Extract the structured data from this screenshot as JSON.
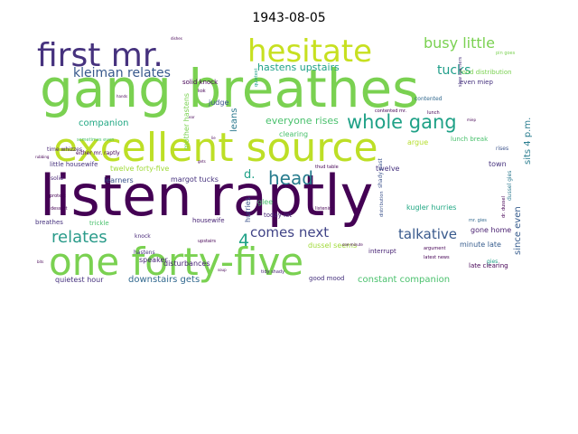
{
  "title": "1943-08-05",
  "palette": [
    "#440154",
    "#46327e",
    "#365c8d",
    "#277f8e",
    "#1fa187",
    "#4ac16d",
    "#a0da39",
    "#c7e020"
  ],
  "words": [
    {
      "text": "listen raptly",
      "weight": 1.0,
      "color": "#440154"
    },
    {
      "text": "gang breathes",
      "weight": 0.98,
      "color": "#7ad151"
    },
    {
      "text": "excellent source",
      "weight": 0.78,
      "color": "#bddf26"
    },
    {
      "text": "one forty-five",
      "weight": 0.76,
      "color": "#7ad151"
    },
    {
      "text": "hesitate",
      "weight": 0.6,
      "color": "#c7e020"
    },
    {
      "text": "first mr.",
      "weight": 0.62,
      "color": "#46327e"
    },
    {
      "text": "whole gang",
      "weight": 0.35,
      "color": "#1fa187"
    },
    {
      "text": "head",
      "weight": 0.34,
      "color": "#287c8e"
    },
    {
      "text": "relates",
      "weight": 0.3,
      "color": "#2a9b8a"
    },
    {
      "text": "busy little",
      "weight": 0.27,
      "color": "#7ad151"
    },
    {
      "text": "kleiman relates",
      "weight": 0.24,
      "color": "#38598c"
    },
    {
      "text": "comes next",
      "weight": 0.26,
      "color": "#414487"
    },
    {
      "text": "talkative",
      "weight": 0.24,
      "color": "#38598c"
    },
    {
      "text": "tucks",
      "weight": 0.22,
      "color": "#1f9e89"
    },
    {
      "text": "d.",
      "weight": 0.22,
      "color": "#1fa187"
    },
    {
      "text": "4",
      "weight": 0.25,
      "color": "#1fa187"
    },
    {
      "text": "hastens upstairs",
      "weight": 0.16,
      "color": "#1fa187"
    },
    {
      "text": "everyone rises",
      "weight": 0.16,
      "color": "#4ac16d"
    },
    {
      "text": "constant companion",
      "weight": 0.14,
      "color": "#4ac16d"
    },
    {
      "text": "downstairs gets",
      "weight": 0.14,
      "color": "#31688e"
    },
    {
      "text": "since even",
      "weight": 0.16,
      "color": "#365c8d"
    },
    {
      "text": "sits 4 p.m.",
      "weight": 0.16,
      "color": "#287c8e"
    },
    {
      "text": "companion",
      "weight": 0.13,
      "color": "#22a884"
    },
    {
      "text": "leans",
      "weight": 0.14,
      "color": "#2a788e"
    },
    {
      "text": "quietest hour",
      "weight": 0.11,
      "color": "#46327e"
    },
    {
      "text": "dussel seems",
      "weight": 0.11,
      "color": "#a0da39"
    },
    {
      "text": "disturbances",
      "weight": 0.1,
      "color": "#482475"
    },
    {
      "text": "twelve forty-five",
      "weight": 0.1,
      "color": "#a0da39"
    },
    {
      "text": "minute late",
      "weight": 0.1,
      "color": "#365c8d"
    },
    {
      "text": "kugler hurries",
      "weight": 0.1,
      "color": "#22a884"
    },
    {
      "text": "gone home",
      "weight": 0.1,
      "color": "#481f70"
    },
    {
      "text": "margot tucks",
      "weight": 0.1,
      "color": "#46327e"
    },
    {
      "text": "learners",
      "weight": 0.1,
      "color": "#3b528b"
    },
    {
      "text": "speaker",
      "weight": 0.1,
      "color": "#482878"
    },
    {
      "text": "glee",
      "weight": 0.1,
      "color": "#4ac16d"
    },
    {
      "text": "judge",
      "weight": 0.1,
      "color": "#3b528b"
    },
    {
      "text": "clearing",
      "weight": 0.1,
      "color": "#4ac16d"
    },
    {
      "text": "argue",
      "weight": 0.1,
      "color": "#b5de2b"
    },
    {
      "text": "twelve",
      "weight": 0.09,
      "color": "#46327e"
    },
    {
      "text": "town",
      "weight": 0.09,
      "color": "#46327e"
    },
    {
      "text": "mother hastens",
      "weight": 0.09,
      "color": "#7ad151"
    },
    {
      "text": "hurries",
      "weight": 0.09,
      "color": "#3b528b"
    },
    {
      "text": "interrupt",
      "weight": 0.08,
      "color": "#482475"
    },
    {
      "text": "good mood",
      "weight": 0.07,
      "color": "#46327e"
    },
    {
      "text": "today let",
      "weight": 0.07,
      "color": "#482878"
    },
    {
      "text": "even miep",
      "weight": 0.08,
      "color": "#46327e"
    },
    {
      "text": "food distribution",
      "weight": 0.07,
      "color": "#7ad151"
    },
    {
      "text": "late clearing",
      "weight": 0.07,
      "color": "#440154"
    },
    {
      "text": "trickle",
      "weight": 0.08,
      "color": "#4ac16d"
    },
    {
      "text": "breathes",
      "weight": 0.07,
      "color": "#46327e"
    },
    {
      "text": "solid knock",
      "weight": 0.07,
      "color": "#440154"
    },
    {
      "text": "housewife",
      "weight": 0.07,
      "color": "#482475"
    },
    {
      "text": "little housewife",
      "weight": 0.07,
      "color": "#46327e"
    },
    {
      "text": "lunch break",
      "weight": 0.07,
      "color": "#4ac16d"
    },
    {
      "text": "shady past",
      "weight": 0.07,
      "color": "#3b528b"
    },
    {
      "text": "contented",
      "weight": 0.06,
      "color": "#31688e"
    },
    {
      "text": "either mr. raptly",
      "weight": 0.06,
      "color": "#440154"
    },
    {
      "text": "knock",
      "weight": 0.06,
      "color": "#482878"
    },
    {
      "text": "gies",
      "weight": 0.06,
      "color": "#1fa187"
    },
    {
      "text": "tidy shady",
      "weight": 0.05,
      "color": "#482475"
    },
    {
      "text": "upstairs",
      "weight": 0.05,
      "color": "#440154"
    },
    {
      "text": "solid",
      "weight": 0.06,
      "color": "#482475"
    },
    {
      "text": "hastens",
      "weight": 0.06,
      "color": "#46327e"
    },
    {
      "text": "protest",
      "weight": 0.05,
      "color": "#440154"
    },
    {
      "text": "dessert",
      "weight": 0.05,
      "color": "#440154"
    },
    {
      "text": "rises",
      "weight": 0.06,
      "color": "#3b528b"
    },
    {
      "text": "quietest",
      "weight": 0.05,
      "color": "#1fa187"
    },
    {
      "text": "time whizzes",
      "weight": 0.06,
      "color": "#482475"
    },
    {
      "text": "sometimes even",
      "weight": 0.05,
      "color": "#4ac16d"
    },
    {
      "text": "slow learners",
      "weight": 0.05,
      "color": "#46327e"
    },
    {
      "text": "dussel gies",
      "weight": 0.06,
      "color": "#2a788e"
    },
    {
      "text": "dr. dussel",
      "weight": 0.05,
      "color": "#440154"
    },
    {
      "text": "listening",
      "weight": 0.05,
      "color": "#440154"
    },
    {
      "text": "argument",
      "weight": 0.05,
      "color": "#440154"
    },
    {
      "text": "mr. gies",
      "weight": 0.05,
      "color": "#31688e"
    },
    {
      "text": "pin goes",
      "weight": 0.05,
      "color": "#7ad151"
    },
    {
      "text": "kok",
      "weight": 0.05,
      "color": "#440154"
    },
    {
      "text": "contented mr.",
      "weight": 0.05,
      "color": "#440154"
    },
    {
      "text": "distribution",
      "weight": 0.05,
      "color": "#3b528b"
    },
    {
      "text": "latest news",
      "weight": 0.05,
      "color": "#440154"
    },
    {
      "text": "thud table",
      "weight": 0.05,
      "color": "#440154"
    },
    {
      "text": "lunch",
      "weight": 0.05,
      "color": "#440154"
    },
    {
      "text": "rubbing",
      "weight": 0.04,
      "color": "#440154"
    },
    {
      "text": "hands",
      "weight": 0.04,
      "color": "#440154"
    },
    {
      "text": "ear",
      "weight": 0.04,
      "color": "#440154"
    },
    {
      "text": "lie",
      "weight": 0.04,
      "color": "#440154"
    },
    {
      "text": "gets",
      "weight": 0.04,
      "color": "#440154"
    },
    {
      "text": "soup",
      "weight": 0.04,
      "color": "#440154"
    },
    {
      "text": "miep",
      "weight": 0.04,
      "color": "#440154"
    },
    {
      "text": "one minute",
      "weight": 0.04,
      "color": "#440154"
    },
    {
      "text": "bits",
      "weight": 0.04,
      "color": "#440154"
    },
    {
      "text": "dishes",
      "weight": 0.04,
      "color": "#440154"
    }
  ]
}
